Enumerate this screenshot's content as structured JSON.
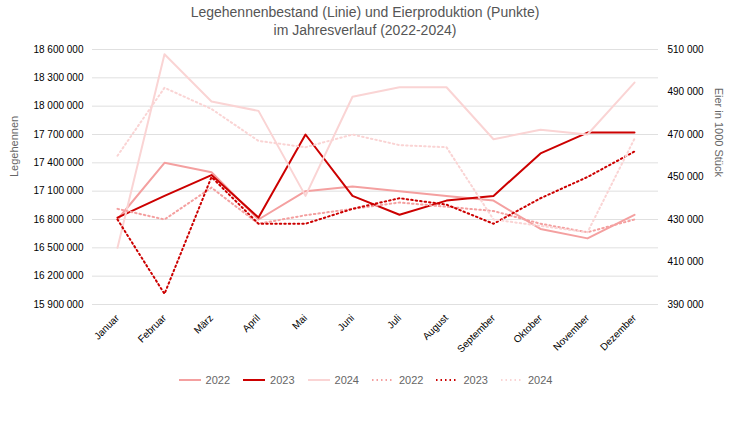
{
  "chart_data": {
    "type": "line",
    "title": "Legehennenbestand (Linie) und Eierproduktion (Punkte)\nim Jahresverlauf (2022-2024)",
    "categories": [
      "Januar",
      "Februar",
      "März",
      "April",
      "Mai",
      "Juni",
      "Juli",
      "August",
      "September",
      "Oktober",
      "November",
      "Dezember"
    ],
    "y_label": "Legehennen",
    "y2_label": "Eier in 1000 Stück",
    "ylim": [
      15900000,
      18600000
    ],
    "yticks": [
      {
        "value": 15900000,
        "label": "15 900 000"
      },
      {
        "value": 16200000,
        "label": "16 200 000"
      },
      {
        "value": 16500000,
        "label": "16 500 000"
      },
      {
        "value": 16800000,
        "label": "16 800 000"
      },
      {
        "value": 17100000,
        "label": "17 100 000"
      },
      {
        "value": 17400000,
        "label": "17 400 000"
      },
      {
        "value": 17700000,
        "label": "17 700 000"
      },
      {
        "value": 18000000,
        "label": "18 000 000"
      },
      {
        "value": 18300000,
        "label": "18 300 000"
      },
      {
        "value": 18600000,
        "label": "18 600 000"
      }
    ],
    "y2lim": [
      390000,
      510000
    ],
    "y2ticks": [
      {
        "value": 390000,
        "label": "390 000"
      },
      {
        "value": 410000,
        "label": "410 000"
      },
      {
        "value": 430000,
        "label": "430 000"
      },
      {
        "value": 450000,
        "label": "450 000"
      },
      {
        "value": 470000,
        "label": "470 000"
      },
      {
        "value": 490000,
        "label": "490 000"
      },
      {
        "value": 510000,
        "label": "510 000"
      }
    ],
    "grid": true,
    "legend": "bottom",
    "series": [
      {
        "name": "2022",
        "color": "#f4a0a0",
        "line_style": "solid",
        "values": [
          16800000,
          17400000,
          17300000,
          16800000,
          17100000,
          17150000,
          17100000,
          17050000,
          17000000,
          16700000,
          16600000,
          16850000
        ]
      },
      {
        "name": "2023",
        "color": "#cc0000",
        "line_style": "solid",
        "values": [
          16820000,
          17050000,
          17270000,
          16820000,
          17700000,
          17050000,
          16850000,
          17000000,
          17050000,
          17500000,
          17720000,
          17720000
        ]
      },
      {
        "name": "2024",
        "color": "#fad4d4",
        "line_style": "solid",
        "values": [
          16500000,
          18550000,
          18050000,
          17950000,
          17050000,
          18100000,
          18200000,
          18200000,
          17650000,
          17750000,
          17700000,
          18250000
        ]
      },
      {
        "name": "2022",
        "color": "#f4a0a0",
        "line_style": "dotted",
        "axis": "y2",
        "values": [
          435000,
          430000,
          445000,
          428000,
          432000,
          435000,
          438000,
          436000,
          434000,
          428000,
          424000,
          430000
        ]
      },
      {
        "name": "2023",
        "color": "#cc0000",
        "line_style": "dotted",
        "axis": "y2",
        "values": [
          430000,
          395000,
          450000,
          428000,
          428000,
          435000,
          440000,
          437000,
          428000,
          440000,
          450000,
          462000
        ]
      },
      {
        "name": "2024",
        "color": "#fad4d4",
        "line_style": "dotted",
        "axis": "y2",
        "values": [
          460000,
          492000,
          482000,
          467000,
          464000,
          470000,
          465000,
          464000,
          430000,
          427000,
          424000,
          468000
        ]
      }
    ]
  }
}
